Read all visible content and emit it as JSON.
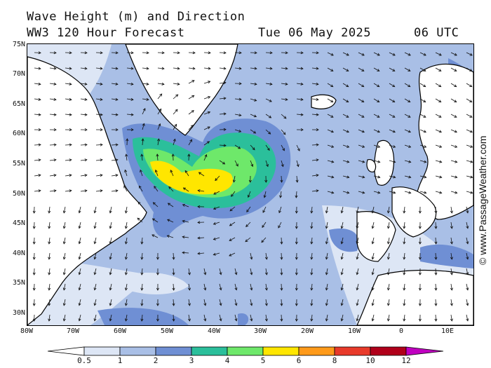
{
  "header": {
    "title": "Wave Height (m) and Direction",
    "model": "WW3 120 Hour Forecast",
    "date": "Tue 06 May 2025",
    "time": "06 UTC"
  },
  "axes": {
    "lat_labels": [
      "75N",
      "70N",
      "65N",
      "60N",
      "55N",
      "50N",
      "45N",
      "40N",
      "35N",
      "30N"
    ],
    "lon_labels": [
      "80W",
      "70W",
      "60W",
      "50W",
      "40W",
      "30W",
      "20W",
      "10W",
      "0",
      "10E"
    ]
  },
  "legend": {
    "labels": [
      "0.5",
      "1",
      "2",
      "3",
      "4",
      "5",
      "6",
      "8",
      "10",
      "12"
    ],
    "colors": [
      "#ffffff",
      "#dde6f5",
      "#a9bfe6",
      "#6f8fd4",
      "#2bbf9b",
      "#6ee86a",
      "#ffe600",
      "#ff9a1a",
      "#e83a2a",
      "#b0001a",
      "#c000c0"
    ]
  },
  "credit": "© www.PassageWeather.com",
  "colors": {
    "land": "#ffffff",
    "sea_low": "#dde6f5",
    "sea_mid": "#a9bfe6",
    "sea_high": "#6f8fd4",
    "peak_green": "#2bbf9b",
    "peak_lime": "#6ee86a",
    "peak_yellow": "#ffe600"
  }
}
